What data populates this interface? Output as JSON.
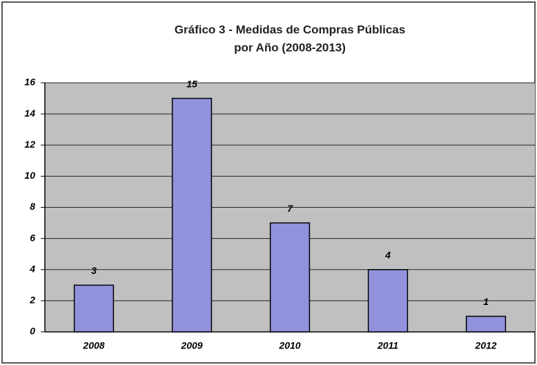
{
  "chart_data": {
    "type": "bar",
    "title": [
      "Gráfico 3 - Medidas de Compras Públicas",
      "por Año (2008-2013)"
    ],
    "categories": [
      "2008",
      "2009",
      "2010",
      "2011",
      "2012"
    ],
    "values": [
      3,
      15,
      7,
      4,
      1
    ],
    "color": "#9191dc",
    "ylim": [
      0,
      16
    ],
    "yticks": [
      0,
      2,
      4,
      6,
      8,
      10,
      12,
      14,
      16
    ],
    "grid": true
  }
}
